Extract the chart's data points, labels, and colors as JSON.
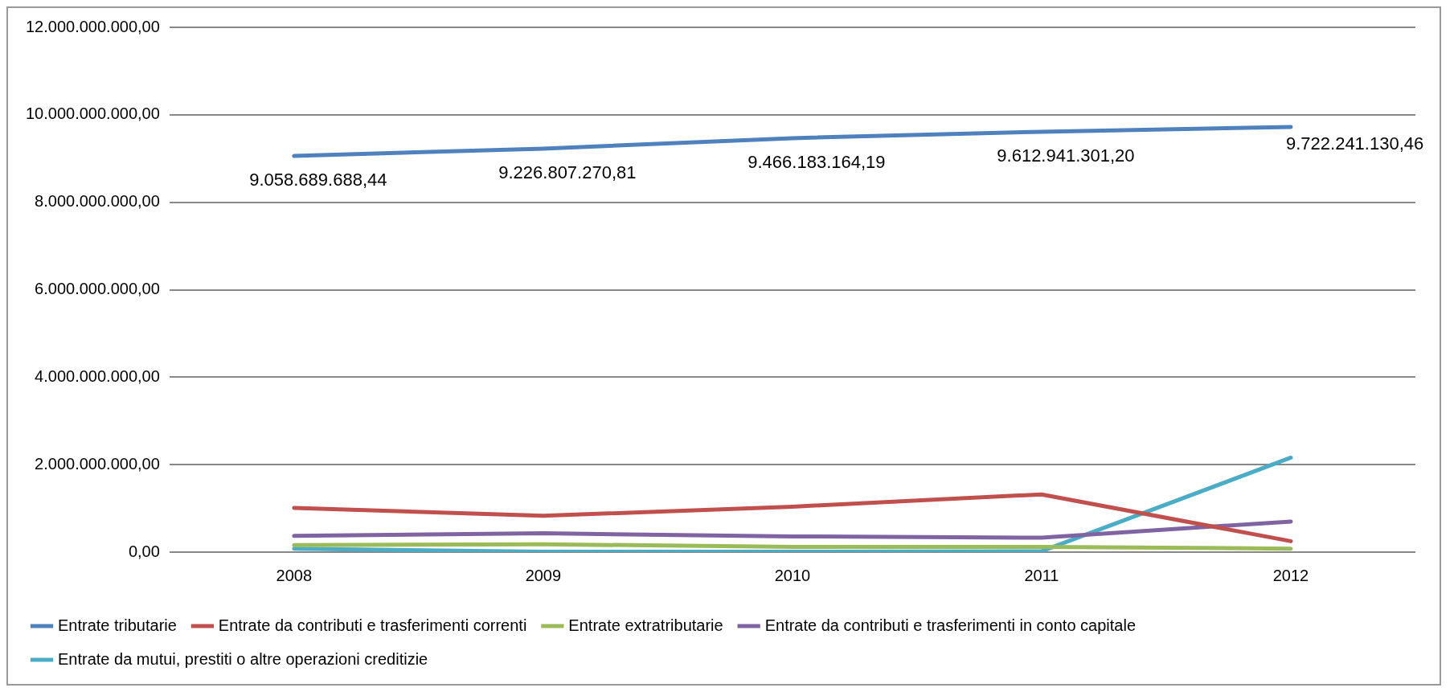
{
  "chart_data": {
    "type": "line",
    "categories": [
      "2008",
      "2009",
      "2010",
      "2011",
      "2012"
    ],
    "ylim": [
      0,
      12000000000
    ],
    "yticks": [
      {
        "value": 0,
        "label": "0,00"
      },
      {
        "value": 2000000000,
        "label": "2.000.000.000,00"
      },
      {
        "value": 4000000000,
        "label": "4.000.000.000,00"
      },
      {
        "value": 6000000000,
        "label": "6.000.000.000,00"
      },
      {
        "value": 8000000000,
        "label": "8.000.000.000,00"
      },
      {
        "value": 10000000000,
        "label": "10.000.000.000,00"
      },
      {
        "value": 12000000000,
        "label": "12.000.000.000,00"
      }
    ],
    "grid": "y",
    "legend": "bottom",
    "marker": "none",
    "line_style": "solid",
    "series": [
      {
        "name": "Entrate tributarie",
        "color": "#4f81bd",
        "values": [
          9058689688.44,
          9226807270.81,
          9466183164.19,
          9612941301.2,
          9722241130.46
        ],
        "value_labels": [
          "9.058.689.688,44",
          "9.226.807.270,81",
          "9.466.183.164,19",
          "9.612.941.301,20",
          "9.722.241.130,46"
        ]
      },
      {
        "name": "Entrate da contributi e trasferimenti correnti",
        "color": "#c0504d",
        "values": [
          1010000000,
          830000000,
          1040000000,
          1320000000,
          250000000
        ]
      },
      {
        "name": "Entrate extratributarie",
        "color": "#9bbb59",
        "values": [
          160000000,
          180000000,
          120000000,
          120000000,
          80000000
        ]
      },
      {
        "name": "Entrate da contributi e trasferimenti in conto capitale",
        "color": "#8064a2",
        "values": [
          370000000,
          430000000,
          360000000,
          330000000,
          700000000
        ]
      },
      {
        "name": "Entrate da mutui, prestiti o altre operazioni creditizie",
        "color": "#4bacc6",
        "values": [
          80000000,
          10000000,
          10000000,
          20000000,
          2160000000
        ]
      }
    ]
  }
}
